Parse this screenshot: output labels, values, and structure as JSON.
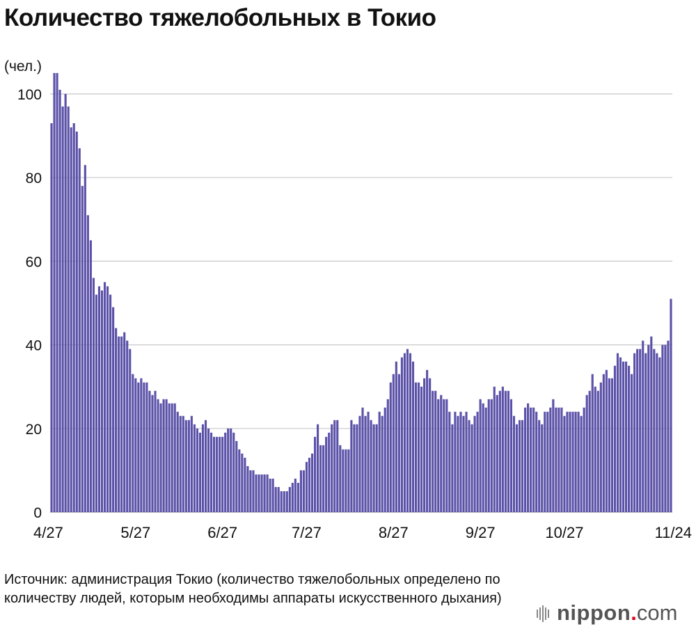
{
  "header": {
    "title": "Количество тяжелобольных в Токио",
    "unit": "(чел.)"
  },
  "chart_data": {
    "type": "bar",
    "title": "Количество тяжелобольных в Токио",
    "ylabel": "(чел.)",
    "xlabel": "",
    "ylim": [
      0,
      100
    ],
    "yticks": [
      0,
      20,
      40,
      60,
      80,
      100
    ],
    "grid": true,
    "bar_color": "#5b52a8",
    "x_tick_labels": [
      {
        "label": "4/27",
        "day": 0
      },
      {
        "label": "5/27",
        "day": 30
      },
      {
        "label": "6/27",
        "day": 61
      },
      {
        "label": "7/27",
        "day": 91
      },
      {
        "label": "8/27",
        "day": 122
      },
      {
        "label": "9/27",
        "day": 153
      },
      {
        "label": "10/27",
        "day": 183
      },
      {
        "label": "11/24",
        "day": 211
      }
    ],
    "series": [
      {
        "values": [
          93,
          105,
          105,
          101,
          97,
          100,
          97,
          92,
          93,
          91,
          87,
          78,
          83,
          71,
          65,
          56,
          52,
          54,
          53,
          55,
          54,
          52,
          49,
          44,
          42,
          42,
          43,
          41,
          39,
          33,
          32,
          31,
          32,
          31,
          31,
          29,
          28,
          29,
          27,
          26,
          27,
          27,
          26,
          26,
          26,
          24,
          23,
          23,
          22,
          22,
          23,
          21,
          20,
          19,
          21,
          22,
          20,
          19,
          18,
          18,
          18,
          18,
          19,
          20,
          20,
          19,
          17,
          15,
          14,
          13,
          11,
          10,
          10,
          9,
          9,
          9,
          9,
          9,
          8,
          8,
          6,
          6,
          5,
          5,
          5,
          6,
          7,
          8,
          7,
          10,
          10,
          12,
          13,
          14,
          18,
          21,
          16,
          16,
          18,
          19,
          21,
          22,
          22,
          16,
          15,
          15,
          15,
          22,
          21,
          21,
          23,
          25,
          23,
          24,
          22,
          21,
          21,
          24,
          23,
          25,
          27,
          31,
          33,
          36,
          33,
          37,
          38,
          39,
          38,
          36,
          31,
          31,
          30,
          32,
          34,
          32,
          29,
          29,
          27,
          28,
          27,
          27,
          24,
          21,
          24,
          23,
          24,
          23,
          24,
          22,
          21,
          23,
          24,
          27,
          26,
          25,
          27,
          27,
          30,
          28,
          29,
          30,
          29,
          29,
          27,
          23,
          21,
          22,
          22,
          25,
          26,
          25,
          25,
          24,
          22,
          21,
          24,
          24,
          25,
          27,
          25,
          25,
          25,
          23,
          24,
          24,
          24,
          24,
          24,
          23,
          25,
          28,
          29,
          33,
          30,
          29,
          31,
          33,
          34,
          32,
          32,
          35,
          38,
          37,
          36,
          36,
          35,
          33,
          38,
          39,
          39,
          41,
          38,
          40,
          42,
          39,
          38,
          37,
          40,
          40,
          41,
          51
        ]
      }
    ]
  },
  "footer": {
    "source": "Источник: администрация Токио (количество тяжелобольных определено по количеству людей, которым необходимы аппараты искусственного дыхания)",
    "logo_text": "nippon",
    "logo_dot": ".",
    "logo_tld": "com"
  }
}
